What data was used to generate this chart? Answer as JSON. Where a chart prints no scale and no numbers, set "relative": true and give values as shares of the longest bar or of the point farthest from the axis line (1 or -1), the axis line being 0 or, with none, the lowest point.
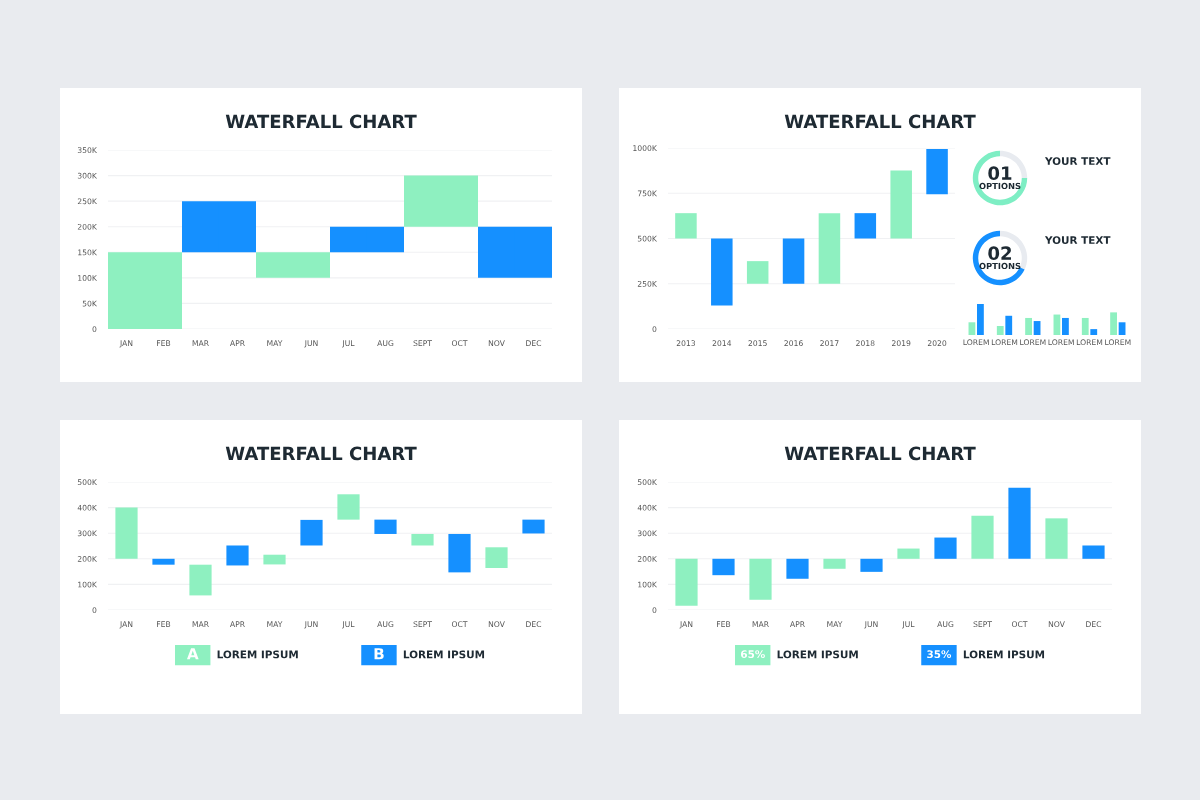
{
  "chart_data": [
    {
      "type": "bar",
      "title": "WATERFALL CHART",
      "categories": [
        "JAN",
        "FEB",
        "MAR",
        "APR",
        "MAY",
        "JUN",
        "JUL",
        "AUG",
        "SEPT",
        "OCT",
        "NOV",
        "DEC"
      ],
      "values": [
        150000,
        150000,
        100000,
        100000,
        50000,
        50000,
        50000,
        50000,
        100000,
        100000,
        100000,
        100000
      ],
      "base": [
        0,
        0,
        150000,
        150000,
        100000,
        100000,
        150000,
        150000,
        200000,
        200000,
        100000,
        100000
      ],
      "colors": [
        "#8ef0c0",
        "#8ef0c0",
        "#1590ff",
        "#1590ff",
        "#8ef0c0",
        "#8ef0c0",
        "#1590ff",
        "#1590ff",
        "#8ef0c0",
        "#8ef0c0",
        "#1590ff",
        "#1590ff"
      ],
      "ylim": [
        0,
        350000
      ],
      "yticks": [
        0,
        {
          "value": 50000,
          "label": "50K"
        },
        {
          "value": 100000,
          "label": "100K"
        },
        {
          "value": 150000,
          "label": "150K"
        },
        {
          "value": 200000,
          "label": "200K"
        },
        {
          "value": 250000,
          "label": "250K"
        },
        {
          "value": 300000,
          "label": "300K"
        },
        {
          "value": 350000,
          "label": "350K"
        }
      ],
      "grid": "y"
    },
    {
      "type": "bar",
      "title": "WATERFALL CHART",
      "categories": [
        "2013",
        "2014",
        "2015",
        "2016",
        "2017",
        "2018",
        "2019",
        "2020"
      ],
      "values": [
        140000,
        370000,
        125000,
        250000,
        390000,
        140000,
        375000,
        250000
      ],
      "base": [
        500000,
        130000,
        250000,
        250000,
        250000,
        500000,
        500000,
        745000
      ],
      "colors": [
        "#8ef0c0",
        "#1590ff",
        "#8ef0c0",
        "#1590ff",
        "#8ef0c0",
        "#1590ff",
        "#8ef0c0",
        "#1590ff"
      ],
      "ylim": [
        0,
        1000000
      ],
      "yticks": [
        0,
        {
          "value": 250000,
          "label": "250K"
        },
        {
          "value": 500000,
          "label": "500K"
        },
        {
          "value": 750000,
          "label": "750K"
        },
        {
          "value": 1000000,
          "label": "1000K"
        }
      ],
      "grid": "y"
    },
    {
      "type": "donut",
      "title": "YOUR TEXT",
      "categories": [
        null,
        null
      ],
      "values": [
        25,
        75
      ],
      "colors": [
        "#e8ebf0",
        "#7eeec4"
      ],
      "annotations": [
        "01",
        "OPTIONS"
      ]
    },
    {
      "type": "donut",
      "title": "YOUR TEXT",
      "categories": [
        null,
        null
      ],
      "values": [
        32,
        68
      ],
      "colors": [
        "#e8ebf0",
        "#1590ff"
      ],
      "annotations": [
        "02",
        "OPTIONS"
      ]
    },
    {
      "type": "bar",
      "relative": true,
      "categories": [
        "LOREM",
        "LOREM",
        "LOREM",
        "LOREM",
        "LOREM",
        "LOREM"
      ],
      "tick_labels": "x",
      "series": [
        {
          "color": "#8ef0c0",
          "values": [
            0.41,
            0.29,
            0.55,
            0.66,
            0.55,
            0.73
          ]
        },
        {
          "color": "#1590ff",
          "values": [
            1,
            0.62,
            0.45,
            0.55,
            0.19,
            0.41
          ]
        }
      ]
    },
    {
      "type": "bar",
      "title": "WATERFALL CHART",
      "categories": [
        "JAN",
        "FEB",
        "MAR",
        "APR",
        "MAY",
        "JUN",
        "JUL",
        "AUG",
        "SEPT",
        "OCT",
        "NOV",
        "DEC"
      ],
      "series": [
        {
          "name": "LOREM IPSUM",
          "color": "#8ef0c0",
          "values": [
            200000,
            null,
            120000,
            null,
            38000,
            null,
            99000,
            null,
            45000,
            null,
            81000,
            null
          ],
          "base": [
            200000,
            null,
            57000,
            null,
            178000,
            null,
            353000,
            null,
            252000,
            null,
            164000,
            null
          ]
        },
        {
          "name": "LOREM IPSUM",
          "color": "#1590ff",
          "values": [
            null,
            23000,
            null,
            78000,
            null,
            100000,
            null,
            56000,
            null,
            150000,
            null,
            54000
          ],
          "base": [
            null,
            177000,
            null,
            174000,
            null,
            252000,
            null,
            297000,
            null,
            147000,
            null,
            299000
          ]
        }
      ],
      "ylim": [
        0,
        500000
      ],
      "yticks": [
        0,
        {
          "value": 100000,
          "label": "100K"
        },
        {
          "value": 200000,
          "label": "200K"
        },
        {
          "value": 300000,
          "label": "300K"
        },
        {
          "value": 400000,
          "label": "400K"
        },
        {
          "value": 500000,
          "label": "500K"
        }
      ],
      "grid": "y",
      "legend": "bottom",
      "annotations": [
        "A",
        "B"
      ]
    },
    {
      "type": "bar",
      "title": "WATERFALL CHART",
      "categories": [
        "JAN",
        "FEB",
        "MAR",
        "APR",
        "MAY",
        "JUN",
        "JUL",
        "AUG",
        "SEPT",
        "OCT",
        "NOV",
        "DEC"
      ],
      "series": [
        {
          "name": "LOREM IPSUM",
          "color": "#8ef0c0",
          "values": [
            183000,
            null,
            160000,
            null,
            39000,
            null,
            40000,
            null,
            168000,
            null,
            158000,
            null
          ],
          "base": [
            17000,
            null,
            40000,
            null,
            161000,
            null,
            200000,
            null,
            200000,
            null,
            200000,
            null
          ]
        },
        {
          "name": "LOREM IPSUM",
          "color": "#1590ff",
          "values": [
            null,
            64000,
            null,
            78000,
            null,
            51000,
            null,
            83000,
            null,
            278000,
            null,
            52000
          ],
          "base": [
            null,
            136000,
            null,
            122000,
            null,
            149000,
            null,
            200000,
            null,
            200000,
            null,
            200000
          ]
        }
      ],
      "ylim": [
        0,
        500000
      ],
      "yticks": [
        0,
        {
          "value": 100000,
          "label": "100K"
        },
        {
          "value": 200000,
          "label": "200K"
        },
        {
          "value": 300000,
          "label": "300K"
        },
        {
          "value": 400000,
          "label": "400K"
        },
        {
          "value": 500000,
          "label": "500K"
        }
      ],
      "grid": "y",
      "legend": "bottom",
      "annotations": [
        "65%",
        "35%"
      ]
    }
  ]
}
